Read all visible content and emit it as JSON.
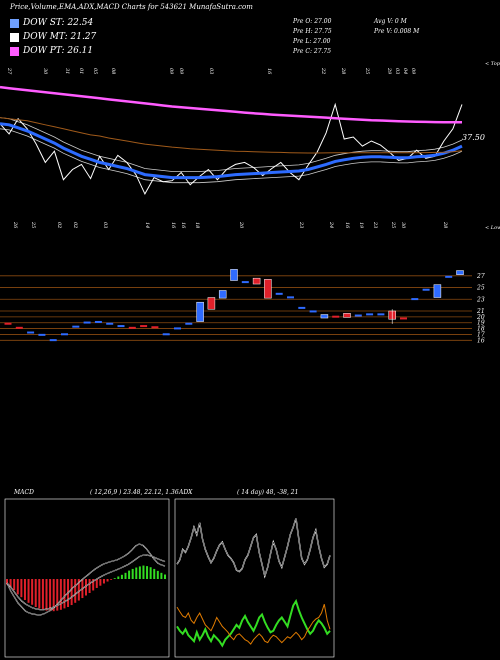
{
  "header": {
    "title": "Price,Volume,EMA,ADX,MACD Charts for 543621 MunafaSutra.com"
  },
  "legend": [
    {
      "label": "DOW ST: 22.54",
      "color": "#6fa0ff"
    },
    {
      "label": "DOW MT: 21.27",
      "color": "#ffffff"
    },
    {
      "label": "DOW PT: 26.11",
      "color": "#ff5cff"
    }
  ],
  "stats": {
    "pre_open": "Pre   O: 27.00",
    "pre_high": "Pre   H: 27.75",
    "pre_low": "Pre   L: 27.00",
    "pre_close": "Pre   C: 27.75",
    "avg_volume": "Avg V: 0   M",
    "pre_volume": "Pre   V: 0.008   M"
  },
  "colors": {
    "up": "#2f6bff",
    "down": "#e0202a",
    "ema_short": "#2d6bff",
    "ema_long": "#ff5cff",
    "ema_mid": "#a05a1a",
    "grid": "#8a4a10",
    "adx_plus": "#33dd22",
    "adx_minus": "#e07b00"
  },
  "chart_data": [
    {
      "type": "line",
      "title": "",
      "top_label": "< Tops",
      "bottom_label": "< Lows",
      "last_value": "37.50",
      "top_date_labels": [
        "27",
        "30",
        "31",
        "01",
        "05",
        "08",
        "09",
        "09",
        "03",
        "16",
        "22",
        "28",
        "25",
        "29",
        "03",
        "04",
        "09"
      ],
      "bottom_date_labels": [
        "26",
        "25",
        "02",
        "02",
        "03",
        "14",
        "16",
        "16",
        "18",
        "20",
        "23",
        "24",
        "16",
        "19",
        "23",
        "25",
        "30",
        "28"
      ],
      "series": [
        {
          "name": "price",
          "values": [
            39,
            38,
            39.5,
            38.5,
            37,
            35.2,
            36.3,
            33.5,
            34.5,
            35,
            33.6,
            35.8,
            34.5,
            35.9,
            35.2,
            34,
            32.1,
            33.7,
            33.3,
            33.4,
            34.2,
            33,
            33.8,
            34.5,
            33.5,
            34.5,
            35,
            35.2,
            34.7,
            33.9,
            34.6,
            35.2,
            34.2,
            33.5,
            34.9,
            36.2,
            38.1,
            40.9,
            37.5,
            37.7,
            36.8,
            37.3,
            36.9,
            36.2,
            35.4,
            35.6,
            36.4,
            35.6,
            35.8,
            37.3,
            38.5,
            40.9
          ]
        },
        {
          "name": "ema_short",
          "values": [
            39,
            38.9,
            38.6,
            38.3,
            37.9,
            37.5,
            37.1,
            36.6,
            36.2,
            35.8,
            35.5,
            35.2,
            35,
            34.8,
            34.6,
            34.3,
            34,
            33.9,
            33.8,
            33.7,
            33.7,
            33.7,
            33.7,
            33.75,
            33.8,
            33.9,
            34,
            34.05,
            34.1,
            34.15,
            34.2,
            34.25,
            34.3,
            34.35,
            34.5,
            34.75,
            35,
            35.3,
            35.45,
            35.6,
            35.7,
            35.75,
            35.75,
            35.7,
            35.65,
            35.65,
            35.75,
            35.8,
            35.9,
            36.1,
            36.4,
            36.8
          ]
        },
        {
          "name": "ema_mid",
          "values": [
            39.6,
            39.5,
            39.4,
            39.3,
            39.1,
            38.9,
            38.7,
            38.5,
            38.3,
            38.1,
            37.9,
            37.8,
            37.6,
            37.45,
            37.3,
            37.15,
            37,
            36.9,
            36.8,
            36.7,
            36.62,
            36.55,
            36.5,
            36.45,
            36.4,
            36.35,
            36.3,
            36.28,
            36.25,
            36.22,
            36.2,
            36.18,
            36.15,
            36.13,
            36.12,
            36.12,
            36.13,
            36.15,
            36.15,
            36.15,
            36.15,
            36.15,
            36.15,
            36.15,
            36.15,
            36.15,
            36.15,
            36.16,
            36.18,
            36.2,
            36.25,
            36.35
          ]
        },
        {
          "name": "ema_long",
          "values": [
            42.6,
            42.5,
            42.4,
            42.3,
            42.2,
            42.1,
            42,
            41.9,
            41.8,
            41.7,
            41.6,
            41.5,
            41.4,
            41.3,
            41.2,
            41.1,
            41,
            40.9,
            40.8,
            40.7,
            40.62,
            40.55,
            40.47,
            40.4,
            40.33,
            40.25,
            40.18,
            40.1,
            40.03,
            39.97,
            39.9,
            39.85,
            39.8,
            39.75,
            39.7,
            39.65,
            39.6,
            39.55,
            39.5,
            39.45,
            39.4,
            39.35,
            39.32,
            39.28,
            39.25,
            39.22,
            39.2,
            39.18,
            39.16,
            39.15,
            39.15,
            39.15
          ]
        }
      ]
    },
    {
      "type": "bar",
      "title": "",
      "ytick_labels": [
        "27",
        "25",
        "23",
        "21",
        "20",
        "19",
        "18",
        "17",
        "16"
      ],
      "yticks": [
        27,
        25,
        23,
        21,
        20,
        19,
        18,
        17,
        16
      ],
      "ylim": [
        15.2,
        29.7
      ],
      "candles": [
        {
          "o": 19,
          "c": 19,
          "d": "down"
        },
        {
          "o": 18.3,
          "c": 18.3,
          "d": "down"
        },
        {
          "o": 17.5,
          "c": 17.5,
          "d": "up"
        },
        {
          "o": 17.1,
          "c": 17.1,
          "d": "up"
        },
        {
          "o": 16.2,
          "c": 16.2,
          "d": "up"
        },
        {
          "o": 17.2,
          "c": 17.2,
          "d": "up"
        },
        {
          "o": 18.5,
          "c": 18.5,
          "d": "up"
        },
        {
          "o": 19.2,
          "c": 19.2,
          "d": "up"
        },
        {
          "o": 19.3,
          "c": 19.3,
          "d": "up"
        },
        {
          "o": 19,
          "c": 19,
          "d": "up"
        },
        {
          "o": 18.6,
          "c": 18.6,
          "d": "up"
        },
        {
          "o": 18.3,
          "c": 18.3,
          "d": "down"
        },
        {
          "o": 18.6,
          "c": 18.6,
          "d": "down"
        },
        {
          "o": 18.4,
          "c": 18.4,
          "d": "down"
        },
        {
          "o": 17.2,
          "c": 17.2,
          "d": "up"
        },
        {
          "o": 18.2,
          "c": 18.2,
          "d": "up"
        },
        {
          "o": 19,
          "c": 19,
          "d": "up"
        },
        {
          "o": 19.2,
          "c": 22.5,
          "d": "up"
        },
        {
          "o": 21.3,
          "c": 23.3,
          "d": "down"
        },
        {
          "o": 23.2,
          "c": 24.5,
          "d": "up"
        },
        {
          "o": 26.2,
          "c": 28.1,
          "d": "up"
        },
        {
          "o": 26.1,
          "c": 26.1,
          "d": "up"
        },
        {
          "o": 26.6,
          "c": 25.6,
          "d": "down"
        },
        {
          "o": 26.4,
          "c": 23.2,
          "d": "down"
        },
        {
          "o": 24.1,
          "c": 24.1,
          "d": "up"
        },
        {
          "o": 23.5,
          "c": 23.5,
          "d": "up"
        },
        {
          "o": 21.7,
          "c": 21.7,
          "d": "up"
        },
        {
          "o": 21.1,
          "c": 21.1,
          "d": "up"
        },
        {
          "o": 20.4,
          "c": 19.8,
          "d": "up"
        },
        {
          "o": 20.2,
          "c": 20.2,
          "d": "down"
        },
        {
          "o": 20.6,
          "c": 19.9,
          "d": "down"
        },
        {
          "o": 20.4,
          "c": 20.4,
          "d": "up"
        },
        {
          "o": 20.6,
          "c": 20.6,
          "d": "up"
        },
        {
          "o": 20.6,
          "c": 20.6,
          "d": "up"
        },
        {
          "o": 21,
          "c": 19.6,
          "d": "down"
        },
        {
          "o": 19.9,
          "c": 19.9,
          "d": "down"
        },
        {
          "o": 23.2,
          "c": 23.2,
          "d": "up"
        },
        {
          "o": 24.8,
          "c": 24.8,
          "d": "up"
        },
        {
          "o": 23.3,
          "c": 25.5,
          "d": "up"
        },
        {
          "o": 27,
          "c": 27,
          "d": "up"
        },
        {
          "o": 27.2,
          "c": 27.9,
          "d": "up"
        }
      ]
    },
    {
      "type": "bar",
      "title": "MACD",
      "params": "( 12,26,9 ) 23.48, 22.12, 1.36",
      "histogram": [
        -2,
        -3,
        -4,
        -5.5,
        -6.5,
        -7.5,
        -8.5,
        -9.2,
        -10,
        -10.5,
        -11,
        -11.3,
        -11.5,
        -11.5,
        -11.3,
        -11,
        -10.5,
        -10,
        -9.3,
        -8.5,
        -7.7,
        -6.8,
        -5.9,
        -5,
        -4.1,
        -3.2,
        -2.4,
        -1.6,
        -0.9,
        -0.3,
        0.3,
        0.9,
        1.5,
        2.2,
        3,
        3.6,
        4.1,
        4.5,
        4.8,
        4.6,
        4.2,
        3.6,
        2.9,
        2.2,
        1.6
      ],
      "series": [
        {
          "name": "macd",
          "values": [
            -2,
            -6,
            -9,
            -12,
            -14,
            -16,
            -17,
            -17.5,
            -17.8,
            -18,
            -17.5,
            -16.5,
            -15.5,
            -14,
            -12,
            -10,
            -8,
            -6.2,
            -4.2,
            -2.8,
            -1,
            0.6,
            2,
            3.6,
            5,
            6.2,
            7.2,
            8,
            8.6,
            9.1,
            9.6,
            10.5,
            11.5,
            12.8,
            14.5,
            16.5,
            17.5,
            16.8,
            15,
            12.5,
            10,
            8,
            7,
            6.5
          ]
        },
        {
          "name": "signal",
          "values": [
            -2,
            -4,
            -6.5,
            -9,
            -11,
            -12.5,
            -13.5,
            -14.5,
            -15,
            -15.3,
            -15.3,
            -15,
            -14.5,
            -13.8,
            -13,
            -12,
            -11,
            -9.8,
            -8.5,
            -7,
            -5.6,
            -4.2,
            -2.9,
            -1.6,
            -0.5,
            0.6,
            1.6,
            2.5,
            3.3,
            4,
            4.7,
            5.5,
            6.4,
            7.3,
            8.5,
            9.8,
            11.2,
            11.9,
            12,
            11.6,
            10.9,
            10.1,
            9.4,
            8.7
          ]
        }
      ]
    },
    {
      "type": "line",
      "title": "ADX",
      "params": "( 14 day) 48, -38, 21",
      "ylim": [
        0,
        100
      ],
      "series": [
        {
          "name": "adx",
          "values": [
            60,
            63,
            70,
            68,
            72,
            78,
            85,
            80,
            88,
            77,
            70,
            65,
            61,
            64,
            69,
            73,
            75,
            70,
            66,
            64,
            61,
            56,
            55,
            57,
            63,
            66,
            72,
            78,
            80,
            68,
            60,
            52,
            58,
            67,
            75,
            70,
            62,
            58,
            65,
            72,
            80,
            85,
            91,
            77,
            64,
            60,
            63,
            70,
            78,
            83,
            72,
            64,
            58,
            60,
            66
          ]
        },
        {
          "name": "di_plus",
          "values": [
            18,
            15,
            13,
            16,
            12,
            10,
            8,
            14,
            9,
            12,
            16,
            11,
            8,
            12,
            10,
            8,
            5,
            9,
            11,
            13,
            16,
            19,
            17,
            22,
            25,
            21,
            18,
            15,
            19,
            24,
            26,
            21,
            17,
            14,
            15,
            19,
            22,
            24,
            21,
            18,
            25,
            32,
            35,
            29,
            24,
            20,
            16,
            13,
            15,
            19,
            22,
            20,
            17,
            13,
            15
          ]
        },
        {
          "name": "di_minus",
          "values": [
            31,
            28,
            25,
            24,
            27,
            22,
            20,
            24,
            27,
            23,
            19,
            17,
            15,
            19,
            24,
            21,
            18,
            16,
            14,
            11,
            9,
            12,
            13,
            11,
            9,
            8,
            6,
            9,
            11,
            13,
            11,
            8,
            7,
            10,
            12,
            11,
            9,
            7,
            9,
            11,
            10,
            12,
            14,
            12,
            9,
            11,
            15,
            18,
            21,
            23,
            24,
            27,
            33,
            22,
            16
          ]
        }
      ]
    }
  ]
}
